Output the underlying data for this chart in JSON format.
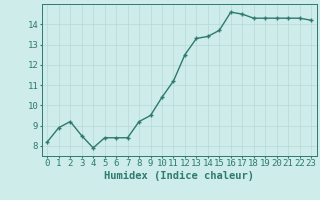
{
  "x": [
    0,
    1,
    2,
    3,
    4,
    5,
    6,
    7,
    8,
    9,
    10,
    11,
    12,
    13,
    14,
    15,
    16,
    17,
    18,
    19,
    20,
    21,
    22,
    23
  ],
  "y": [
    8.2,
    8.9,
    9.2,
    8.5,
    7.9,
    8.4,
    8.4,
    8.4,
    9.2,
    9.5,
    10.4,
    11.2,
    12.5,
    13.3,
    13.4,
    13.7,
    14.6,
    14.5,
    14.3,
    14.3,
    14.3,
    14.3,
    14.3,
    14.2
  ],
  "xlabel": "Humidex (Indice chaleur)",
  "ylim": [
    7.5,
    15.0
  ],
  "xlim": [
    -0.5,
    23.5
  ],
  "yticks": [
    8,
    9,
    10,
    11,
    12,
    13,
    14
  ],
  "xticks": [
    0,
    1,
    2,
    3,
    4,
    5,
    6,
    7,
    8,
    9,
    10,
    11,
    12,
    13,
    14,
    15,
    16,
    17,
    18,
    19,
    20,
    21,
    22,
    23
  ],
  "line_color": "#2d7a6e",
  "marker": "+",
  "bg_color": "#ceecea",
  "grid_color": "#b8d8d6",
  "axis_color": "#2d7a6e",
  "tick_label_color": "#2d7a6e",
  "xlabel_color": "#2d7a6e",
  "xlabel_fontsize": 7.5,
  "tick_fontsize": 6.5,
  "linewidth": 1.0,
  "markersize": 3.5
}
